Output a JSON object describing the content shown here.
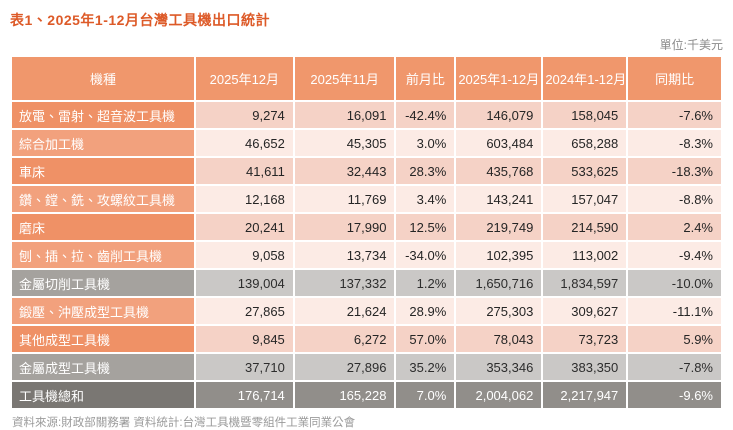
{
  "title": "表1、2025年1-12月台灣工具機出口統計",
  "unit_label": "單位:千美元",
  "source_note": "資料來源:財政部關務署  資料統計:台灣工具機暨零組件工業同業公會",
  "colors": {
    "title_color": "#dd5a28",
    "header_bg": "#f0976c",
    "label_dark": "#ef9166",
    "label_light": "#f2a17d",
    "cell_dark": "#f5d2c6",
    "cell_light": "#fcebe5",
    "subtotal_label_bg": "#a5a29e",
    "subtotal_cell_bg": "#cac8c6",
    "total_label_bg": "#7a7773",
    "total_cell_bg": "#918e8a"
  },
  "chart_data": {
    "type": "table",
    "title": "表1、2025年1-12月台灣工具機出口統計",
    "unit": "千美元",
    "columns": [
      "機種",
      "2025年12月",
      "2025年11月",
      "前月比",
      "2025年1-12月",
      "2024年1-12月",
      "同期比"
    ],
    "column_widths_pct": [
      26.1,
      13.9,
      14.3,
      8.3,
      12.2,
      11.9,
      13.3
    ],
    "rows": [
      {
        "label": "放電、雷射、超音波工具機",
        "values": [
          "9,274",
          "16,091",
          "-42.4%",
          "146,079",
          "158,045",
          "-7.6%"
        ],
        "kind": "odd"
      },
      {
        "label": "綜合加工機",
        "values": [
          "46,652",
          "45,305",
          "3.0%",
          "603,484",
          "658,288",
          "-8.3%"
        ],
        "kind": "even"
      },
      {
        "label": "車床",
        "values": [
          "41,611",
          "32,443",
          "28.3%",
          "435,768",
          "533,625",
          "-18.3%"
        ],
        "kind": "odd"
      },
      {
        "label": "鑽、鏜、銑、攻螺紋工具機",
        "values": [
          "12,168",
          "11,769",
          "3.4%",
          "143,241",
          "157,047",
          "-8.8%"
        ],
        "kind": "even"
      },
      {
        "label": "磨床",
        "values": [
          "20,241",
          "17,990",
          "12.5%",
          "219,749",
          "214,590",
          "2.4%"
        ],
        "kind": "odd"
      },
      {
        "label": "刨、插、拉、齒削工具機",
        "values": [
          "9,058",
          "13,734",
          "-34.0%",
          "102,395",
          "113,002",
          "-9.4%"
        ],
        "kind": "even"
      },
      {
        "label": "金屬切削工具機",
        "values": [
          "139,004",
          "137,332",
          "1.2%",
          "1,650,716",
          "1,834,597",
          "-10.0%"
        ],
        "kind": "subtotal"
      },
      {
        "label": "鍛壓、沖壓成型工具機",
        "values": [
          "27,865",
          "21,624",
          "28.9%",
          "275,303",
          "309,627",
          "-11.1%"
        ],
        "kind": "even"
      },
      {
        "label": "其他成型工具機",
        "values": [
          "9,845",
          "6,272",
          "57.0%",
          "78,043",
          "73,723",
          "5.9%"
        ],
        "kind": "odd"
      },
      {
        "label": "金屬成型工具機",
        "values": [
          "37,710",
          "27,896",
          "35.2%",
          "353,346",
          "383,350",
          "-7.8%"
        ],
        "kind": "subtotal"
      },
      {
        "label": "工具機總和",
        "values": [
          "176,714",
          "165,228",
          "7.0%",
          "2,004,062",
          "2,217,947",
          "-9.6%"
        ],
        "kind": "total"
      }
    ]
  }
}
